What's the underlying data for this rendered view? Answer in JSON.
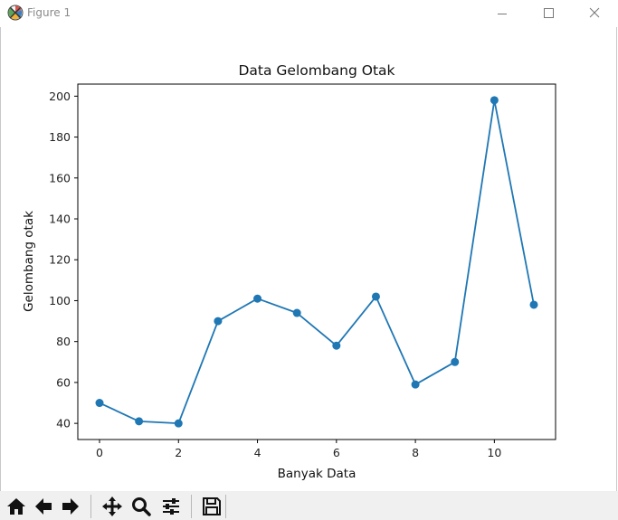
{
  "window": {
    "title": "Figure 1",
    "app_icon": "matplotlib-icon",
    "controls": [
      "minimize-icon",
      "maximize-icon",
      "close-icon"
    ]
  },
  "toolbar": {
    "buttons": [
      "home-icon",
      "back-arrow-icon",
      "forward-arrow-icon",
      "pan-icon",
      "zoom-icon",
      "configure-subplots-icon",
      "save-icon"
    ]
  },
  "chart_data": {
    "type": "line",
    "title": "Data Gelombang Otak",
    "xlabel": "Banyak Data",
    "ylabel": "Gelombang otak",
    "x": [
      0,
      1,
      2,
      3,
      4,
      5,
      6,
      7,
      8,
      9,
      10,
      11
    ],
    "series": [
      {
        "values": [
          50,
          41,
          40,
          90,
          101,
          94,
          78,
          102,
          59,
          70,
          198,
          98
        ],
        "color": "#1f77b4",
        "marker": "circle"
      }
    ],
    "xlim": [
      -0.55,
      11.55
    ],
    "ylim": [
      32.1,
      205.9
    ],
    "xticks": [
      0,
      2,
      4,
      6,
      8,
      10
    ],
    "yticks": [
      40,
      60,
      80,
      100,
      120,
      140,
      160,
      180,
      200
    ],
    "grid": false
  }
}
